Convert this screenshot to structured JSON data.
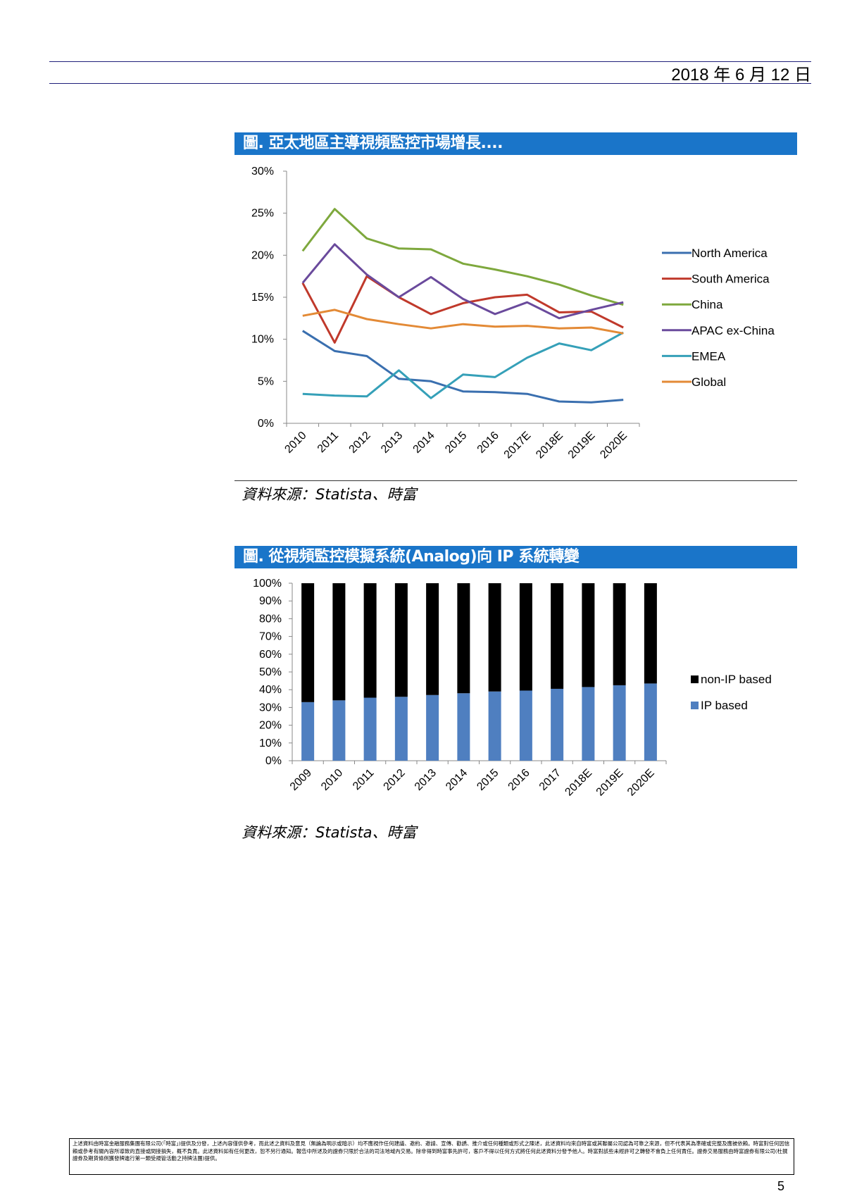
{
  "header": {
    "date": "2018 年 6 月 12 日"
  },
  "figure1": {
    "title": "圖. 亞太地區主導視頻監控市場增長....",
    "source": "資料來源：Statista、時富",
    "chart_data": {
      "type": "line",
      "categories": [
        "2010",
        "2011",
        "2012",
        "2013",
        "2014",
        "2015",
        "2016",
        "2017E",
        "2018E",
        "2019E",
        "2020E"
      ],
      "y_ticks": [
        "0%",
        "5%",
        "10%",
        "15%",
        "20%",
        "25%",
        "30%"
      ],
      "ylim": [
        0,
        30
      ],
      "series": [
        {
          "name": "North America",
          "color": "#3a6faf",
          "values": [
            11.0,
            8.6,
            8.0,
            5.3,
            5.0,
            3.8,
            3.7,
            3.5,
            2.6,
            2.5,
            2.8
          ]
        },
        {
          "name": "South America",
          "color": "#c0392b",
          "values": [
            16.7,
            9.6,
            17.5,
            15.0,
            13.0,
            14.3,
            15.0,
            15.3,
            13.2,
            13.3,
            11.4
          ]
        },
        {
          "name": "China",
          "color": "#7ea83d",
          "values": [
            20.5,
            25.5,
            22.0,
            20.8,
            20.7,
            19.0,
            18.3,
            17.5,
            16.5,
            15.2,
            14.1
          ]
        },
        {
          "name": "APAC ex-China",
          "color": "#6a4a9c",
          "values": [
            16.7,
            21.3,
            17.7,
            15.0,
            17.4,
            14.8,
            13.0,
            14.4,
            12.5,
            13.5,
            14.4
          ]
        },
        {
          "name": "EMEA",
          "color": "#35a0b8",
          "values": [
            3.5,
            3.3,
            3.2,
            6.3,
            3.0,
            5.8,
            5.5,
            7.8,
            9.5,
            8.7,
            10.8
          ]
        },
        {
          "name": "Global",
          "color": "#e38a36",
          "values": [
            12.8,
            13.5,
            12.4,
            11.8,
            11.3,
            11.8,
            11.5,
            11.6,
            11.3,
            11.4,
            10.7
          ]
        }
      ]
    }
  },
  "figure2": {
    "title": "圖. 從視頻監控模擬系統(Analog)向 IP 系統轉變",
    "source": "資料來源：Statista、時富",
    "chart_data": {
      "type": "bar",
      "stacked": true,
      "categories": [
        "2009",
        "2010",
        "2011",
        "2012",
        "2013",
        "2014",
        "2015",
        "2016",
        "2017",
        "2018E",
        "2019E",
        "2020E"
      ],
      "y_ticks": [
        "0%",
        "10%",
        "20%",
        "30%",
        "40%",
        "50%",
        "60%",
        "70%",
        "80%",
        "90%",
        "100%"
      ],
      "ylim": [
        0,
        100
      ],
      "series": [
        {
          "name": "IP based",
          "color": "#4f7fc0",
          "values": [
            33,
            34,
            35.5,
            36,
            37,
            38,
            39,
            39.5,
            40.5,
            41.5,
            42.5,
            43.5
          ]
        },
        {
          "name": "non-IP based",
          "color": "#000000",
          "values": [
            67,
            66,
            64.5,
            64,
            63,
            62,
            61,
            60.5,
            59.5,
            58.5,
            57.5,
            56.5
          ]
        }
      ],
      "legend_order": [
        "non-IP based",
        "IP based"
      ]
    }
  },
  "footer": {
    "disclaimer": "上述資料由時富金融服務集團有限公司(「時富」)提供及分發，上述內容僅供參考，而此述之資料及意見（無論為明示或暗示）均不應視作任何建議、邀約、邀請、宣傳、勸誘、推介或任何種類或形式之陳述，此述資料均來自時富或其聯屬公司認為可靠之來源，但不代表其為準確或完整及應被依賴。時富對任何因信賴或參考有關內容所導致的直接或間接損失，概不負責。此述資料如有任何更改，恕不另行通知。報告中所述及的證券只限於合法的司法地域內交易。除非得到時富事先許可，客戶不得以任何方式將任何此述資料分發予他人。時富對該些未經許可之轉發不會負上任何責任。證券交易服務由時富證券有限公司(杜撰證券及期貨條例獲發牌進行第一類受規管活動之持牌法團)提供。",
    "page_number": "5"
  }
}
